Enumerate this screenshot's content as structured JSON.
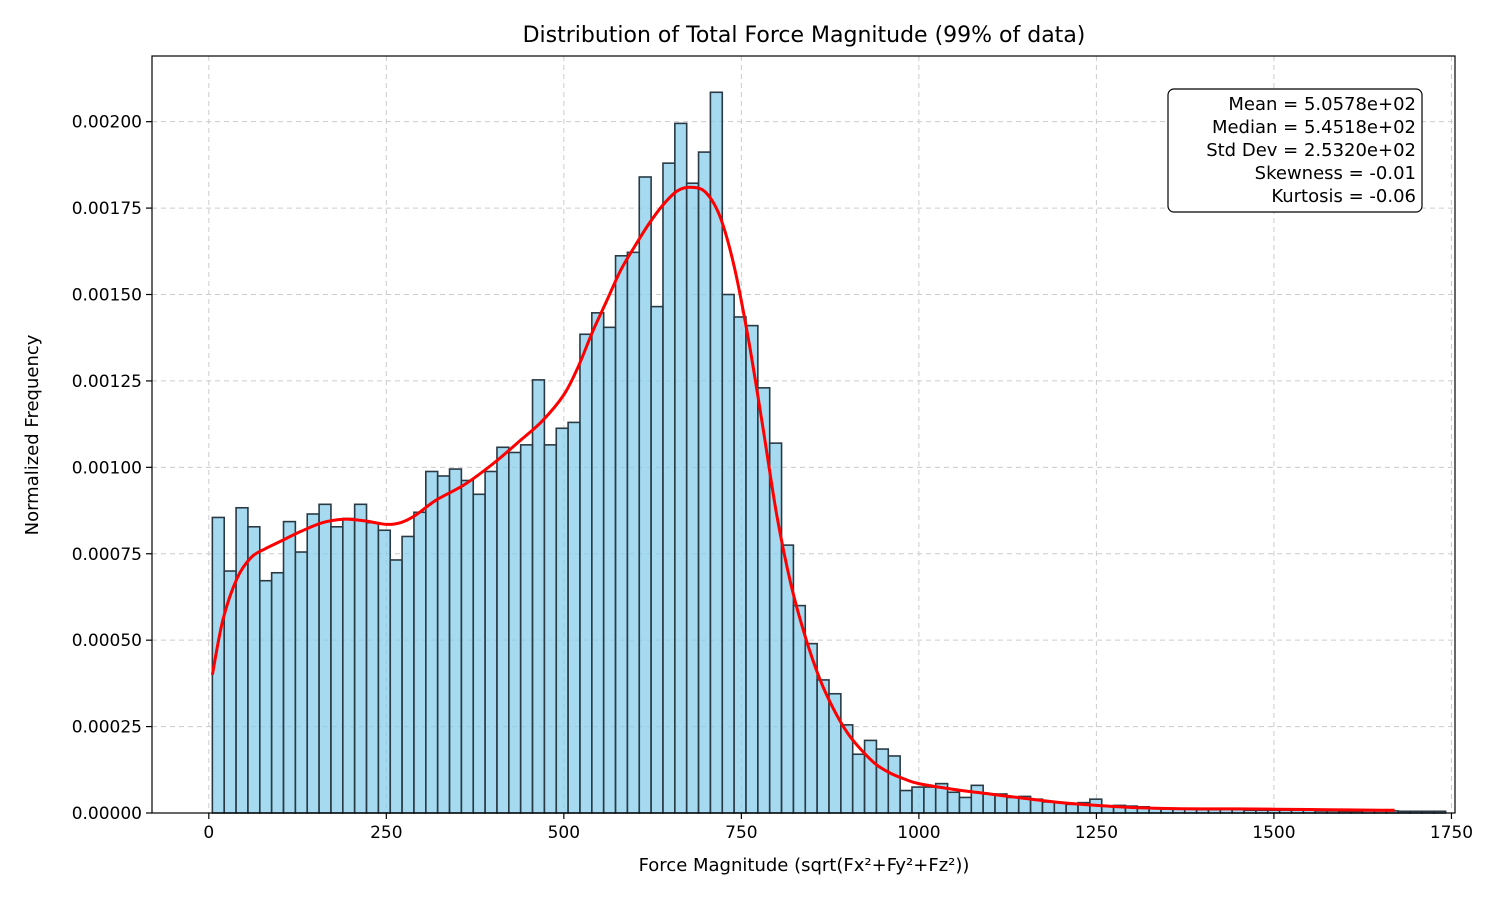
{
  "chart_data": {
    "type": "bar",
    "title": "Distribution of Total Force Magnitude (99% of data)",
    "xlabel": "Force Magnitude (sqrt(Fx²+Fy²+Fz²))",
    "ylabel": "Normalized Frequency",
    "xlim": [
      -80,
      1755
    ],
    "ylim": [
      0,
      0.00219
    ],
    "x_ticks": [
      0,
      250,
      500,
      750,
      1000,
      1250,
      1500,
      1750
    ],
    "x_tick_labels": [
      "0",
      "250",
      "500",
      "750",
      "1000",
      "1250",
      "1500",
      "1750"
    ],
    "y_ticks": [
      0,
      0.00025,
      0.0005,
      0.00075,
      0.001,
      0.00125,
      0.0015,
      0.00175,
      0.002
    ],
    "y_tick_labels": [
      "0.00000",
      "0.00025",
      "0.00050",
      "0.00075",
      "0.00100",
      "0.00125",
      "0.00150",
      "0.00175",
      "0.00200"
    ],
    "grid": true,
    "bin_start": 5,
    "bin_width": 16.7,
    "bar_color": "#87CEEB",
    "bar_edge_color": "#2a3a44",
    "kde_color": "#ff0000",
    "series": [
      {
        "name": "Histogram",
        "values": [
          0.000855,
          0.0007,
          0.000883,
          0.000828,
          0.000672,
          0.000695,
          0.000843,
          0.000755,
          0.000865,
          0.000893,
          0.000828,
          0.000852,
          0.000893,
          0.00084,
          0.000818,
          0.000732,
          0.0008,
          0.00087,
          0.000988,
          0.000975,
          0.000995,
          0.000962,
          0.000922,
          0.000988,
          0.001058,
          0.001043,
          0.001065,
          0.001253,
          0.001065,
          0.001113,
          0.00113,
          0.001385,
          0.001447,
          0.001405,
          0.001612,
          0.001622,
          0.00184,
          0.001465,
          0.00188,
          0.001995,
          0.001822,
          0.001912,
          0.002085,
          0.0015,
          0.001435,
          0.00141,
          0.00123,
          0.00107,
          0.000775,
          0.0006,
          0.00049,
          0.000385,
          0.000345,
          0.000255,
          0.00017,
          0.00021,
          0.000185,
          0.000165,
          6.5e-05,
          7.5e-05,
          7.5e-05,
          8.5e-05,
          6e-05,
          4.5e-05,
          8e-05,
          5.5e-05,
          5.5e-05,
          4.5e-05,
          4.8e-05,
          4e-05,
          3.2e-05,
          3e-05,
          2.5e-05,
          3e-05,
          4e-05,
          2e-05,
          2.2e-05,
          2e-05,
          1.8e-05,
          1.5e-05,
          1.2e-05,
          1.2e-05,
          1.2e-05,
          1e-05,
          1e-05,
          1.2e-05,
          1e-05,
          8e-06,
          8e-06,
          8e-06,
          8e-06,
          8e-06,
          8e-06,
          6e-06,
          6e-06,
          5e-06,
          5e-06,
          6e-06,
          6e-06,
          6e-06,
          5e-06,
          5e-06,
          5e-06,
          5e-06
        ]
      },
      {
        "name": "KDE",
        "x": [
          5,
          20,
          40,
          60,
          80,
          100,
          130,
          160,
          190,
          220,
          250,
          270,
          290,
          320,
          360,
          400,
          440,
          470,
          500,
          520,
          540,
          560,
          580,
          600,
          620,
          640,
          660,
          680,
          700,
          720,
          740,
          760,
          780,
          800,
          820,
          840,
          860,
          880,
          900,
          920,
          940,
          960,
          980,
          1000,
          1050,
          1100,
          1150,
          1200,
          1250,
          1300,
          1350,
          1400,
          1450,
          1500,
          1550,
          1600,
          1650,
          1670
        ],
        "y": [
          0.0004,
          0.00056,
          0.00068,
          0.00074,
          0.000765,
          0.000785,
          0.000815,
          0.00084,
          0.00085,
          0.000845,
          0.000835,
          0.00084,
          0.00086,
          0.000905,
          0.00095,
          0.00101,
          0.00108,
          0.001135,
          0.00121,
          0.00129,
          0.00139,
          0.00148,
          0.00157,
          0.00164,
          0.001705,
          0.00176,
          0.0018,
          0.00181,
          0.001795,
          0.001725,
          0.00158,
          0.00137,
          0.00112,
          0.00086,
          0.00066,
          0.00051,
          0.00039,
          0.0003,
          0.00023,
          0.00018,
          0.00014,
          0.000115,
          9.8e-05,
          8.5e-05,
          6.8e-05,
          5.5e-05,
          4.2e-05,
          3e-05,
          2.2e-05,
          1.6e-05,
          1.3e-05,
          1.2e-05,
          1.2e-05,
          1.1e-05,
          1e-05,
          9e-06,
          8e-06,
          8e-06
        ]
      }
    ],
    "stats_box": {
      "lines": [
        "Mean = 5.0578e+02",
        "Median = 5.4518e+02",
        "Std Dev = 2.5320e+02",
        "Skewness = -0.01",
        "Kurtosis = -0.06"
      ],
      "placement": "top-right"
    }
  }
}
